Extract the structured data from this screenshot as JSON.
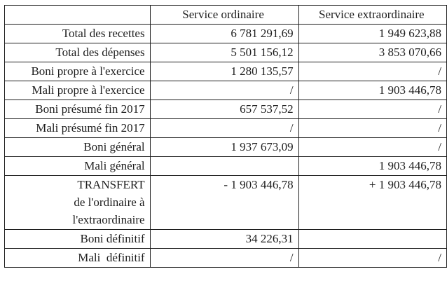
{
  "headers": [
    "",
    "Service ordinaire",
    "Service extraordinaire"
  ],
  "rows": [
    {
      "label": "Total des recettes",
      "ordinaire": "6 781 291,69",
      "extraordinaire": "1 949 623,88"
    },
    {
      "label": "Total des dépenses",
      "ordinaire": "5 501 156,12",
      "extraordinaire": "3 853 070,66"
    },
    {
      "label": "Boni propre à l'exercice",
      "ordinaire": "1 280 135,57",
      "extraordinaire": "/"
    },
    {
      "label": "Mali propre à l'exercice",
      "ordinaire": "/",
      "extraordinaire": "1 903 446,78"
    },
    {
      "label": "Boni présumé fin 2017",
      "ordinaire": "657 537,52",
      "extraordinaire": "/"
    },
    {
      "label": "Mali présumé fin 2017",
      "ordinaire": "/",
      "extraordinaire": "/"
    },
    {
      "label": "Boni général",
      "ordinaire": "1 937 673,09",
      "extraordinaire": "/"
    },
    {
      "label": "Mali général",
      "ordinaire": "",
      "extraordinaire": "1 903 446,78"
    }
  ],
  "transfer": {
    "label_lines": [
      "TRANSFERT",
      "de l'ordinaire à",
      "l'extraordinaire"
    ],
    "ordinaire": "- 1 903 446,78",
    "extraordinaire": "+ 1 903 446,78"
  },
  "final_rows": [
    {
      "label": "Boni définitif",
      "ordinaire": "34 226,31",
      "extraordinaire": ""
    },
    {
      "label": "Mali  définitif",
      "ordinaire": "/",
      "extraordinaire": "/"
    }
  ]
}
